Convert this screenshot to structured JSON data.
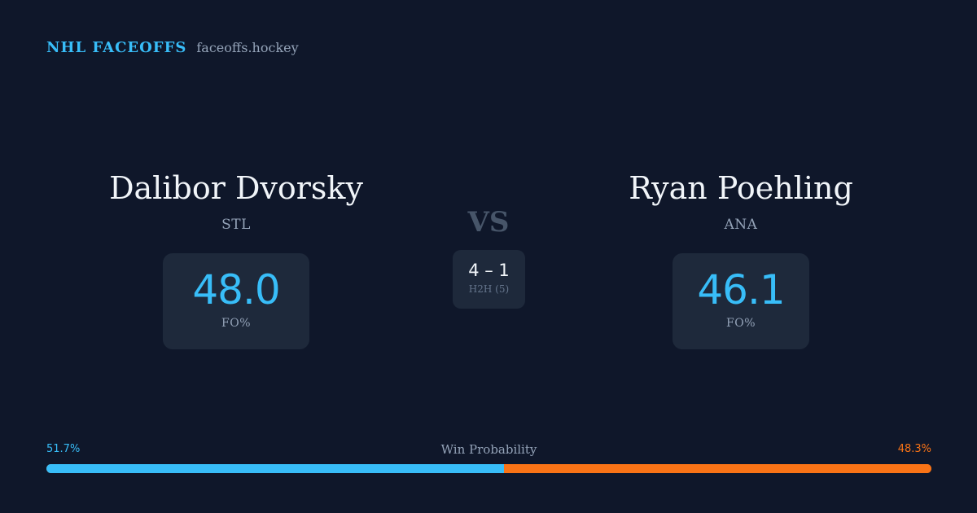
{
  "brand": {
    "name": "NHL FACEOFFS",
    "url": "faceoffs.hockey"
  },
  "players": [
    {
      "name": "Dalibor Dvorsky",
      "team": "STL",
      "stat_value": "48.0",
      "stat_label": "FO%"
    },
    {
      "name": "Ryan Poehling",
      "team": "ANA",
      "stat_value": "46.1",
      "stat_label": "FO%"
    }
  ],
  "versus": {
    "label": "VS",
    "h2h_score": "4 – 1",
    "h2h_label": "H2H (5)"
  },
  "win_probability": {
    "title": "Win Probability",
    "left_label": "51.7%",
    "right_label": "48.3%",
    "left_value": 51.7,
    "right_value": 48.3,
    "left_color": "#38bdf8",
    "right_color": "#f97316"
  }
}
